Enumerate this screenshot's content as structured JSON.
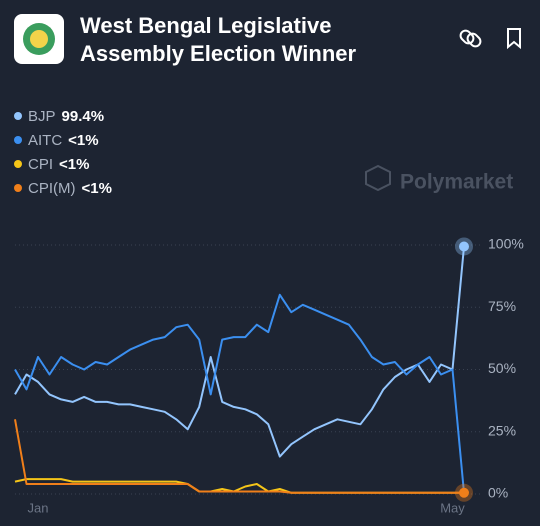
{
  "title": "West Bengal Legislative Assembly Election Winner",
  "watermark": "Polymarket",
  "chart_data": {
    "type": "line",
    "categories": [
      null,
      null,
      "Jan",
      null,
      null,
      null,
      null,
      null,
      null,
      null,
      null,
      null,
      null,
      null,
      null,
      null,
      null,
      null,
      null,
      null,
      null,
      null,
      null,
      null,
      null,
      null,
      null,
      null,
      null,
      null,
      null,
      null,
      null,
      null,
      null,
      null,
      null,
      null,
      "May",
      null
    ],
    "series": [
      {
        "name": "BJP",
        "value_label": "99.4%",
        "color": "#93c5fd",
        "values": [
          40,
          48,
          45,
          40,
          38,
          37,
          39,
          37,
          37,
          36,
          36,
          35,
          34,
          33,
          30,
          26,
          35,
          55,
          37,
          35,
          34,
          32,
          28,
          15,
          20,
          23,
          26,
          28,
          30,
          29,
          28,
          34,
          42,
          47,
          50,
          52,
          45,
          52,
          50,
          99.4
        ]
      },
      {
        "name": "AITC",
        "value_label": "<1%",
        "color": "#3b8ff0",
        "values": [
          50,
          42,
          55,
          48,
          55,
          52,
          50,
          53,
          52,
          55,
          58,
          60,
          62,
          63,
          67,
          68,
          62,
          40,
          62,
          63,
          63,
          68,
          65,
          80,
          73,
          76,
          74,
          72,
          70,
          68,
          62,
          55,
          52,
          53,
          48,
          52,
          55,
          48,
          50,
          0.5
        ]
      },
      {
        "name": "CPI",
        "value_label": "<1%",
        "color": "#f5c518",
        "values": [
          5,
          6,
          6,
          6,
          6,
          5,
          5,
          5,
          5,
          5,
          5,
          5,
          5,
          5,
          5,
          4,
          1,
          1,
          2,
          1,
          3,
          4,
          1,
          2,
          0.5,
          0.5,
          0.5,
          0.5,
          0.5,
          0.5,
          0.5,
          0.5,
          0.5,
          0.5,
          0.5,
          0.5,
          0.5,
          0.5,
          0.5,
          0.5
        ]
      },
      {
        "name": "CPI(M)",
        "value_label": "<1%",
        "color": "#f07f1a",
        "values": [
          30,
          4,
          4,
          4,
          4,
          4,
          4,
          4,
          4,
          4,
          4,
          4,
          4,
          4,
          4,
          4,
          1,
          1,
          1,
          1,
          1,
          1,
          1,
          1,
          0.5,
          0.5,
          0.5,
          0.5,
          0.5,
          0.5,
          0.5,
          0.5,
          0.5,
          0.5,
          0.5,
          0.5,
          0.5,
          0.5,
          0.5,
          0.5
        ]
      }
    ],
    "ylim": [
      0,
      100
    ],
    "yticks": [
      {
        "value": 0,
        "label": "0%"
      },
      {
        "value": 25,
        "label": "25%"
      },
      {
        "value": 50,
        "label": "50%"
      },
      {
        "value": 75,
        "label": "75%"
      },
      {
        "value": 100,
        "label": "100%"
      }
    ],
    "grid": true
  }
}
